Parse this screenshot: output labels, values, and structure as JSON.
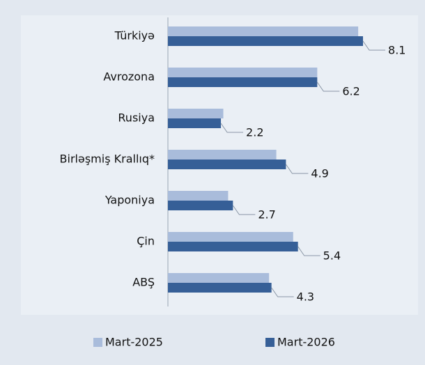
{
  "chart_data": {
    "type": "bar",
    "orientation": "horizontal",
    "categories": [
      "Türkiyə",
      "Avrozona",
      "Rusiya",
      "Birləşmiş Krallıq*",
      "Yaponiya",
      "Çin",
      "ABŞ"
    ],
    "series": [
      {
        "name": "Mart-2025",
        "color": "#a9bcdb",
        "values": [
          7.9,
          6.2,
          2.3,
          4.5,
          2.5,
          5.2,
          4.2
        ]
      },
      {
        "name": "Mart-2026",
        "color": "#365f97",
        "values": [
          8.1,
          6.2,
          2.2,
          4.9,
          2.7,
          5.4,
          4.3
        ]
      }
    ],
    "labeled_series": 1,
    "legend": "bottom"
  }
}
